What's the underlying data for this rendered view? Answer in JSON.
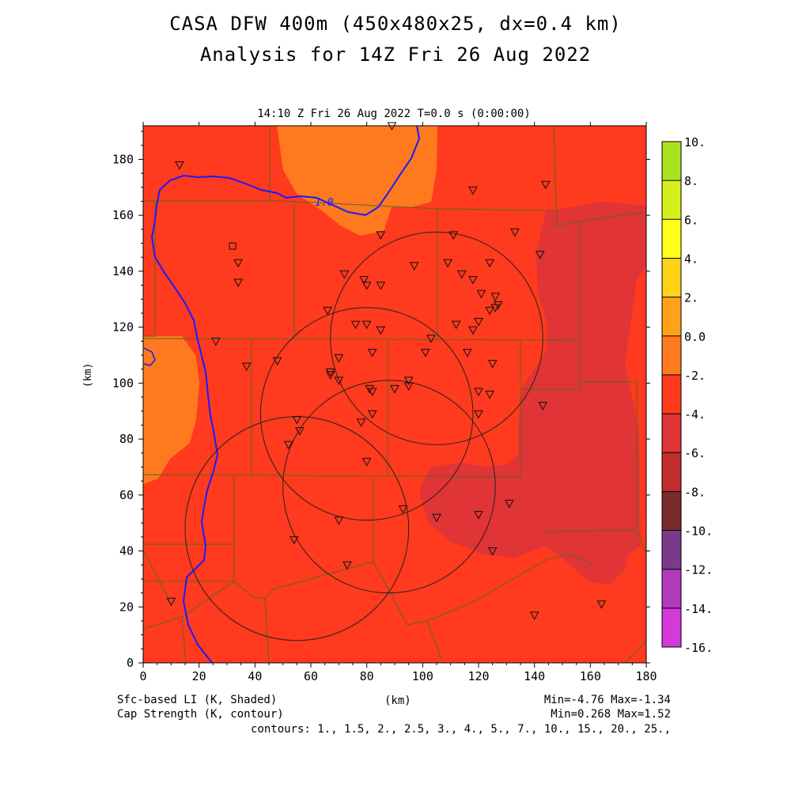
{
  "header": {
    "title_line1": "CASA DFW 400m (450x480x25, dx=0.4 km)",
    "title_line2": "Analysis for 14Z Fri 26 Aug 2022",
    "valid_time": "14:10 Z Fri 26 Aug 2022    T=0.0 s (0:00:00)"
  },
  "axes": {
    "x_label": "(km)",
    "y_label": "(km)",
    "x_ticks": [
      0,
      20,
      40,
      60,
      80,
      100,
      120,
      140,
      160,
      180
    ],
    "y_ticks": [
      0,
      20,
      40,
      60,
      80,
      100,
      120,
      140,
      160,
      180
    ],
    "x_range": [
      0,
      180
    ],
    "y_range": [
      0,
      192
    ]
  },
  "footer": {
    "field1_label": "Sfc-based LI (K, Shaded)",
    "field1_stats": "Min=-4.76 Max=-1.34",
    "field2_label": "Cap Strength (K, contour)",
    "field2_stats": "Min=0.268 Max=1.52",
    "contours": "contours: 1., 1.5, 2., 2.5, 3., 4., 5., 7., 10., 15., 20., 25.,"
  },
  "colorbar": {
    "labels": [
      "10.",
      "8.",
      "6.",
      "4.",
      "2.",
      "0.0",
      "-2.",
      "-4.",
      "-6.",
      "-8.",
      "-10.",
      "-12.",
      "-14.",
      "-16."
    ],
    "colors": [
      "#a8e41e",
      "#d4f01c",
      "#ffff1a",
      "#ffd21a",
      "#ffa21a",
      "#ff7a1e",
      "#ff3a1e",
      "#e03436",
      "#c02e2e",
      "#7a2a2a",
      "#7a3a8a",
      "#b03ab8",
      "#d43ad8"
    ]
  },
  "map": {
    "background_color": "#ff3a1e",
    "contour_label": "1.0",
    "regions": [
      {
        "name": "north-orange",
        "color": "#ff7a1e"
      },
      {
        "name": "west-orange",
        "color": "#ff7a1e"
      },
      {
        "name": "east-red",
        "color": "#e03436"
      }
    ],
    "range_rings_km": [
      {
        "cx": 105,
        "cy": 116,
        "r": 38
      },
      {
        "cx": 80,
        "cy": 89,
        "r": 38
      },
      {
        "cx": 88,
        "cy": 63,
        "r": 38
      },
      {
        "cx": 55,
        "cy": 48,
        "r": 40
      }
    ],
    "stations": [
      [
        13,
        178
      ],
      [
        89,
        192
      ],
      [
        118,
        169
      ],
      [
        144,
        171
      ],
      [
        133,
        154
      ],
      [
        85,
        153
      ],
      [
        111,
        153
      ],
      [
        142,
        146
      ],
      [
        34,
        143
      ],
      [
        34,
        136
      ],
      [
        72,
        139
      ],
      [
        79,
        137
      ],
      [
        80,
        135
      ],
      [
        85,
        135
      ],
      [
        97,
        142
      ],
      [
        109,
        143
      ],
      [
        114,
        139
      ],
      [
        118,
        137
      ],
      [
        124,
        143
      ],
      [
        121,
        132
      ],
      [
        126,
        131
      ],
      [
        127,
        128
      ],
      [
        124,
        126
      ],
      [
        126,
        127
      ],
      [
        66,
        126
      ],
      [
        76,
        121
      ],
      [
        80,
        121
      ],
      [
        85,
        119
      ],
      [
        112,
        121
      ],
      [
        118,
        119
      ],
      [
        120,
        122
      ],
      [
        26,
        115
      ],
      [
        103,
        116
      ],
      [
        82,
        111
      ],
      [
        101,
        111
      ],
      [
        116,
        111
      ],
      [
        125,
        107
      ],
      [
        37,
        106
      ],
      [
        48,
        108
      ],
      [
        70,
        109
      ],
      [
        67,
        104
      ],
      [
        67,
        103
      ],
      [
        70,
        101
      ],
      [
        81,
        98
      ],
      [
        82,
        97
      ],
      [
        90,
        98
      ],
      [
        95,
        101
      ],
      [
        95,
        99
      ],
      [
        120,
        97
      ],
      [
        124,
        96
      ],
      [
        143,
        92
      ],
      [
        82,
        89
      ],
      [
        120,
        89
      ],
      [
        78,
        86
      ],
      [
        55,
        87
      ],
      [
        56,
        83
      ],
      [
        52,
        78
      ],
      [
        80,
        72
      ],
      [
        131,
        57
      ],
      [
        93,
        55
      ],
      [
        105,
        52
      ],
      [
        120,
        53
      ],
      [
        70,
        51
      ],
      [
        54,
        44
      ],
      [
        125,
        40
      ],
      [
        73,
        35
      ],
      [
        10,
        22
      ],
      [
        140,
        17
      ],
      [
        164,
        21
      ]
    ],
    "square_station": [
      32,
      149
    ]
  }
}
